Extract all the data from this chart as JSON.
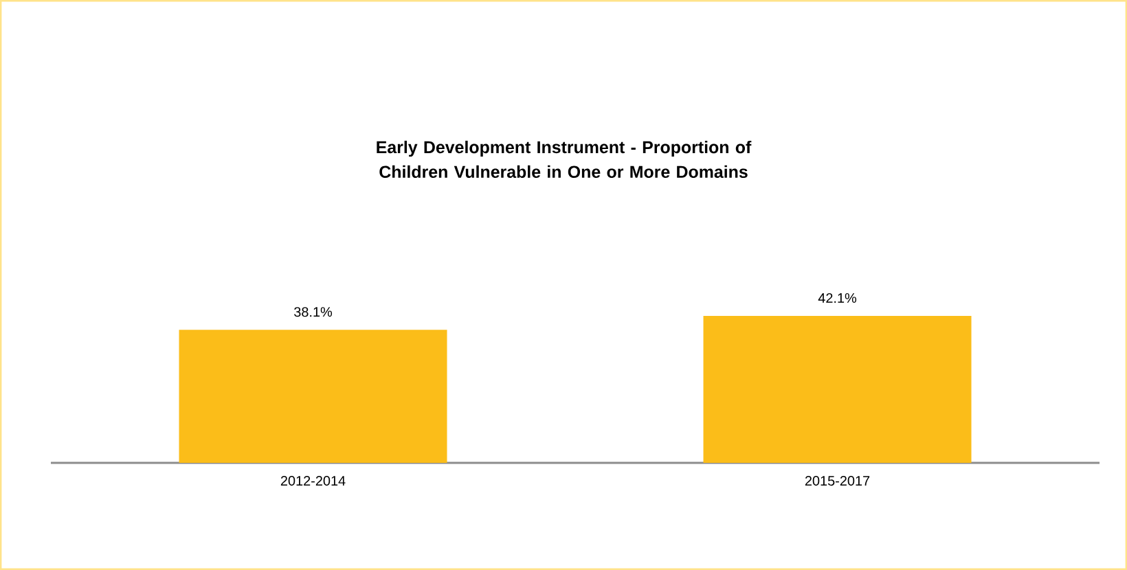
{
  "chart_data": {
    "type": "bar",
    "title": "Early Development Instrument - Proportion of Children Vulnerable in One or More Domains",
    "categories": [
      "2012-2014",
      "2015-2017"
    ],
    "values": [
      38.1,
      42.1
    ],
    "value_labels": [
      "38.1%",
      "42.1%"
    ],
    "color": "#fbbd19",
    "tick_labels": "x"
  }
}
